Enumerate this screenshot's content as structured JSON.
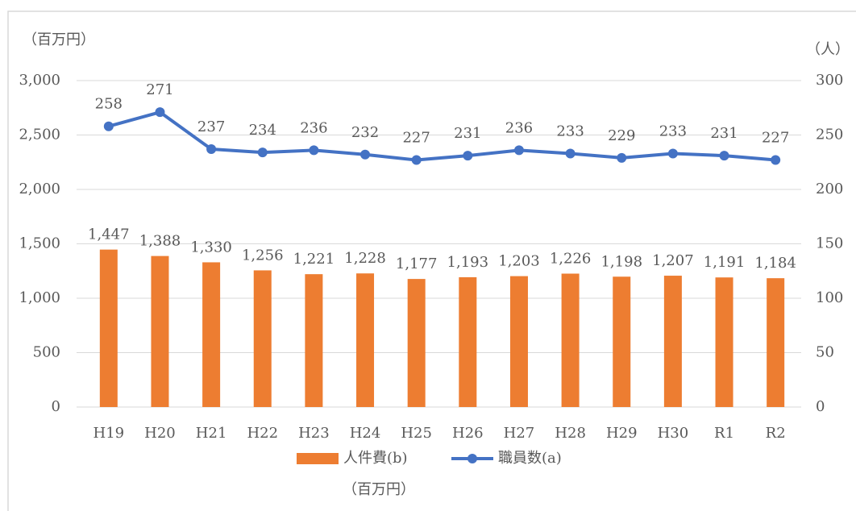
{
  "chart_data": {
    "type": "combo",
    "ylabel": "（百万円）",
    "y2label": "（人）",
    "note": "（百万円）",
    "categories": [
      "H19",
      "H20",
      "H21",
      "H22",
      "H23",
      "H24",
      "H25",
      "H26",
      "H27",
      "H28",
      "H29",
      "H30",
      "R1",
      "R2"
    ],
    "series": [
      {
        "name": "人件費(b)",
        "type": "bar",
        "color": "#ed7d31",
        "values": [
          1447,
          1388,
          1330,
          1256,
          1221,
          1228,
          1177,
          1193,
          1203,
          1226,
          1198,
          1207,
          1191,
          1184
        ],
        "value_labels": [
          "1,447",
          "1,388",
          "1,330",
          "1,256",
          "1,221",
          "1,228",
          "1,177",
          "1,193",
          "1,203",
          "1,226",
          "1,198",
          "1,207",
          "1,191",
          "1,184"
        ]
      },
      {
        "name": "職員数(a)",
        "type": "line",
        "axis": "y2",
        "color": "#4472c4",
        "values": [
          258,
          271,
          237,
          234,
          236,
          232,
          227,
          231,
          236,
          233,
          229,
          233,
          231,
          227
        ]
      }
    ],
    "ylim": [
      0,
      3000
    ],
    "yticks": [
      0,
      {
        "value": 500,
        "label": "500"
      },
      {
        "value": 1000,
        "label": "1,000"
      },
      {
        "value": 1500,
        "label": "1,500"
      },
      {
        "value": 2000,
        "label": "2,000"
      },
      {
        "value": 2500,
        "label": "2,500"
      },
      {
        "value": 3000,
        "label": "3,000"
      }
    ],
    "y2lim": [
      0,
      300
    ],
    "y2ticks": [
      0,
      50,
      100,
      150,
      200,
      250,
      300
    ],
    "grid": true,
    "legend": "bottom"
  }
}
